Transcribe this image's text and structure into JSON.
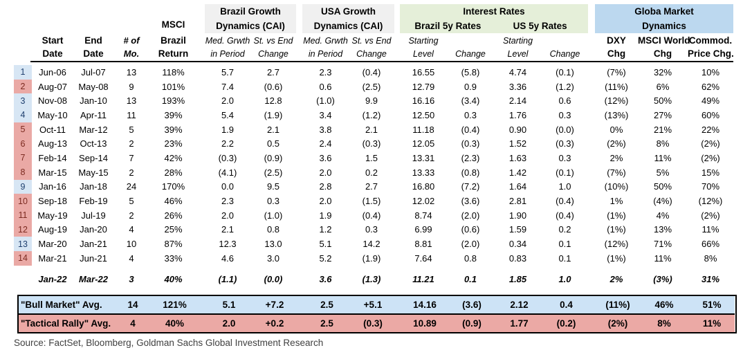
{
  "header": {
    "groups": {
      "msci_top": "MSCI",
      "brazil_growth": [
        "Brazil Growth",
        "Dynamics (CAI)"
      ],
      "usa_growth": [
        "USA Growth",
        "Dynamics (CAI)"
      ],
      "interest_rates": "Interest Rates",
      "brazil_5y": "Brazil 5y Rates",
      "us_5y": "US 5y Rates",
      "global_market": [
        "Globa Market",
        "Dynamics"
      ]
    },
    "cols": {
      "start": [
        "Start",
        "Date"
      ],
      "end": [
        "End",
        "Date"
      ],
      "months": [
        "# of",
        "Mo."
      ],
      "msci": [
        "Brazil",
        "Return"
      ],
      "med_grwth": [
        "Med. Grwth",
        "in Period"
      ],
      "st_vs_end": [
        "St. vs End",
        "Change"
      ],
      "starting": [
        "Starting",
        "Level"
      ],
      "change": "Change",
      "dxy": [
        "DXY",
        "Chg"
      ],
      "msci_world": [
        "MSCI World",
        "Chg"
      ],
      "commod": [
        "Commod.",
        "Price Chg."
      ]
    }
  },
  "rows": [
    {
      "n": "1",
      "kind": "bull",
      "v": [
        "Jun-06",
        "Jul-07",
        "13",
        "118%",
        "5.7",
        "2.7",
        "2.3",
        "(0.4)",
        "16.55",
        "(5.8)",
        "4.74",
        "(0.1)",
        "(7%)",
        "32%",
        "10%"
      ]
    },
    {
      "n": "2",
      "kind": "rally",
      "v": [
        "Aug-07",
        "May-08",
        "9",
        "101%",
        "7.4",
        "(0.6)",
        "0.6",
        "(2.5)",
        "12.79",
        "0.9",
        "3.36",
        "(1.2)",
        "(11%)",
        "6%",
        "62%"
      ]
    },
    {
      "n": "3",
      "kind": "bull",
      "v": [
        "Nov-08",
        "Jan-10",
        "13",
        "193%",
        "2.0",
        "12.8",
        "(1.0)",
        "9.9",
        "16.16",
        "(3.4)",
        "2.14",
        "0.6",
        "(12%)",
        "50%",
        "49%"
      ]
    },
    {
      "n": "4",
      "kind": "bull",
      "v": [
        "May-10",
        "Apr-11",
        "11",
        "39%",
        "5.4",
        "(1.9)",
        "3.4",
        "(1.2)",
        "12.50",
        "0.3",
        "1.76",
        "0.3",
        "(13%)",
        "27%",
        "60%"
      ]
    },
    {
      "n": "5",
      "kind": "rally",
      "v": [
        "Oct-11",
        "Mar-12",
        "5",
        "39%",
        "1.9",
        "2.1",
        "3.8",
        "2.1",
        "11.18",
        "(0.4)",
        "0.90",
        "(0.0)",
        "0%",
        "21%",
        "22%"
      ]
    },
    {
      "n": "6",
      "kind": "rally",
      "v": [
        "Aug-13",
        "Oct-13",
        "2",
        "23%",
        "2.2",
        "0.5",
        "2.4",
        "(0.3)",
        "12.05",
        "(0.3)",
        "1.52",
        "(0.3)",
        "(2%)",
        "8%",
        "(2%)"
      ]
    },
    {
      "n": "7",
      "kind": "rally",
      "v": [
        "Feb-14",
        "Sep-14",
        "7",
        "42%",
        "(0.3)",
        "(0.9)",
        "3.6",
        "1.5",
        "13.31",
        "(2.3)",
        "1.63",
        "0.3",
        "2%",
        "11%",
        "(2%)"
      ]
    },
    {
      "n": "8",
      "kind": "rally",
      "v": [
        "Mar-15",
        "May-15",
        "2",
        "28%",
        "(4.1)",
        "(2.5)",
        "2.0",
        "0.2",
        "13.33",
        "(0.8)",
        "1.42",
        "(0.1)",
        "(7%)",
        "5%",
        "15%"
      ]
    },
    {
      "n": "9",
      "kind": "bull",
      "v": [
        "Jan-16",
        "Jan-18",
        "24",
        "170%",
        "0.0",
        "9.5",
        "2.8",
        "2.7",
        "16.80",
        "(7.2)",
        "1.64",
        "1.0",
        "(10%)",
        "50%",
        "70%"
      ]
    },
    {
      "n": "10",
      "kind": "rally",
      "v": [
        "Sep-18",
        "Feb-19",
        "5",
        "46%",
        "2.3",
        "0.3",
        "2.0",
        "(1.5)",
        "12.02",
        "(3.6)",
        "2.81",
        "(0.4)",
        "1%",
        "(4%)",
        "(12%)"
      ]
    },
    {
      "n": "11",
      "kind": "rally",
      "v": [
        "May-19",
        "Jul-19",
        "2",
        "26%",
        "2.0",
        "(1.0)",
        "1.9",
        "(0.4)",
        "8.74",
        "(2.0)",
        "1.90",
        "(0.4)",
        "(1%)",
        "4%",
        "(2%)"
      ]
    },
    {
      "n": "12",
      "kind": "rally",
      "v": [
        "Aug-19",
        "Jan-20",
        "4",
        "25%",
        "2.1",
        "0.8",
        "1.2",
        "0.3",
        "6.99",
        "(0.6)",
        "1.59",
        "0.2",
        "(1%)",
        "13%",
        "11%"
      ]
    },
    {
      "n": "13",
      "kind": "bull",
      "v": [
        "Mar-20",
        "Jan-21",
        "10",
        "87%",
        "12.3",
        "13.0",
        "5.1",
        "14.2",
        "8.81",
        "(2.0)",
        "0.34",
        "0.1",
        "(12%)",
        "71%",
        "66%"
      ]
    },
    {
      "n": "14",
      "kind": "rally",
      "v": [
        "Mar-21",
        "Jun-21",
        "4",
        "33%",
        "4.6",
        "3.0",
        "5.2",
        "(1.9)",
        "7.64",
        "0.8",
        "0.83",
        "0.1",
        "(1%)",
        "11%",
        "8%"
      ]
    }
  ],
  "current": {
    "v": [
      "Jan-22",
      "Mar-22",
      "3",
      "40%",
      "(1.1)",
      "(0.0)",
      "3.6",
      "(1.3)",
      "11.21",
      "0.1",
      "1.85",
      "1.0",
      "2%",
      "(3%)",
      "31%"
    ]
  },
  "summary": [
    {
      "label": "\"Bull Market\" Avg.",
      "kind": "bull",
      "v": [
        "14",
        "121%",
        "5.1",
        "+7.2",
        "2.5",
        "+5.1",
        "14.16",
        "(3.6)",
        "2.12",
        "0.4",
        "(11%)",
        "46%",
        "51%"
      ]
    },
    {
      "label": "\"Tactical Rally\" Avg.",
      "kind": "rally",
      "v": [
        "4",
        "40%",
        "2.0",
        "+0.2",
        "2.5",
        "(0.3)",
        "10.89",
        "(0.9)",
        "1.77",
        "(0.2)",
        "(2%)",
        "8%",
        "11%"
      ]
    }
  ],
  "source": "Source: FactSet, Bloomberg, Goldman Sachs Global Investment Research",
  "colors": {
    "bull_index_fill": "#D7E6F4",
    "bull_index_text": "#1F3F6E",
    "rally_index_fill": "#EAA9A5",
    "rally_index_text": "#7B2A20",
    "summary_bull_fill": "#CDE3F6",
    "summary_rally_fill": "#EBA9A5",
    "group_gray": "#F0F0F0",
    "group_green": "#E5EFD9",
    "group_blue": "#BCD8EF"
  }
}
